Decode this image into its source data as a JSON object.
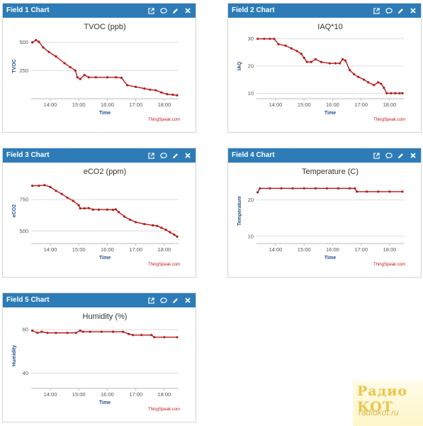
{
  "colors": {
    "header": "#2d7cb8",
    "series": "#b81818",
    "grid": "#dddddd"
  },
  "icons": [
    "external-link-icon",
    "comment-icon",
    "pencil-icon",
    "close-icon"
  ],
  "credit": "ThingSpeak.com",
  "watermark": {
    "logo": "Радио КОТ",
    "url": "radiokot.ru"
  },
  "widgets": [
    {
      "title": "Field 1 Chart",
      "chart_data": {
        "type": "line",
        "title": "TVOC (ppb)",
        "xlabel": "Time",
        "ylabel": "TVOC",
        "x_unit": "hours",
        "xlim": [
          13.33,
          18.5
        ],
        "xticks": [
          14,
          15,
          16,
          17,
          18
        ],
        "xticklabels": [
          "14:00",
          "15:00",
          "16:00",
          "17:00",
          "18:00"
        ],
        "ylim": [
          0,
          580
        ],
        "yticks": [
          250,
          500
        ],
        "yticklabels": [
          "250",
          "500"
        ],
        "x": [
          13.37,
          13.5,
          13.6,
          13.75,
          13.95,
          14.2,
          14.5,
          14.7,
          14.88,
          14.95,
          15.05,
          15.2,
          15.35,
          15.6,
          16.0,
          16.3,
          16.5,
          16.7,
          17.0,
          17.3,
          17.5,
          17.7,
          17.9,
          18.1,
          18.3,
          18.45
        ],
        "y": [
          500,
          520,
          505,
          455,
          415,
          375,
          315,
          280,
          250,
          190,
          175,
          210,
          190,
          190,
          190,
          190,
          185,
          120,
          105,
          90,
          80,
          75,
          55,
          40,
          35,
          30
        ]
      }
    },
    {
      "title": "Field 2 Chart",
      "chart_data": {
        "type": "line",
        "title": "IAQ*10",
        "xlabel": "Time",
        "ylabel": "IAQ",
        "x_unit": "hours",
        "xlim": [
          13.33,
          18.5
        ],
        "xticks": [
          14,
          15,
          16,
          17,
          18
        ],
        "xticklabels": [
          "14:00",
          "15:00",
          "16:00",
          "17:00",
          "18:00"
        ],
        "ylim": [
          8,
          32
        ],
        "yticks": [
          10,
          20,
          30
        ],
        "yticklabels": [
          "10",
          "20",
          "30"
        ],
        "x": [
          13.37,
          13.6,
          13.8,
          13.95,
          14.1,
          14.35,
          14.55,
          14.75,
          14.9,
          15.0,
          15.1,
          15.25,
          15.4,
          15.6,
          15.9,
          16.1,
          16.25,
          16.35,
          16.45,
          16.6,
          16.75,
          16.9,
          17.1,
          17.25,
          17.45,
          17.6,
          17.7,
          17.8,
          17.9,
          18.05,
          18.2,
          18.35,
          18.45
        ],
        "y": [
          30,
          30,
          30,
          30,
          28,
          27.5,
          26.5,
          25.5,
          24.5,
          23,
          21.5,
          21.5,
          22.5,
          21.5,
          21,
          21,
          21,
          22.5,
          22,
          18.5,
          17,
          16,
          15,
          14,
          13,
          14,
          13.5,
          12,
          10,
          10,
          10,
          10,
          10
        ]
      }
    },
    {
      "title": "Field 3 Chart",
      "chart_data": {
        "type": "line",
        "title": "eCO2 (ppm)",
        "xlabel": "Time",
        "ylabel": "eCO2",
        "x_unit": "hours",
        "xlim": [
          13.33,
          18.5
        ],
        "xticks": [
          14,
          15,
          16,
          17,
          18
        ],
        "xticklabels": [
          "14:00",
          "15:00",
          "16:00",
          "17:00",
          "18:00"
        ],
        "ylim": [
          400,
          920
        ],
        "yticks": [
          500,
          750
        ],
        "yticklabels": [
          "500",
          "750"
        ],
        "x": [
          13.37,
          13.6,
          13.8,
          14.0,
          14.2,
          14.4,
          14.6,
          14.8,
          15.0,
          15.05,
          15.2,
          15.35,
          15.5,
          15.7,
          16.0,
          16.2,
          16.3,
          16.4,
          16.6,
          16.8,
          17.0,
          17.3,
          17.6,
          17.75,
          17.9,
          18.05,
          18.2,
          18.35,
          18.45
        ],
        "y": [
          860,
          860,
          865,
          850,
          820,
          795,
          765,
          740,
          705,
          680,
          680,
          682,
          670,
          670,
          670,
          668,
          672,
          650,
          615,
          590,
          570,
          555,
          545,
          540,
          525,
          510,
          490,
          470,
          455
        ]
      }
    },
    {
      "title": "Field 4 Chart",
      "chart_data": {
        "type": "line",
        "title": "Temperature (C)",
        "xlabel": "Time",
        "ylabel": "Temperature",
        "x_unit": "hours",
        "xlim": [
          13.33,
          18.5
        ],
        "xticks": [
          14,
          15,
          16,
          17,
          18
        ],
        "xticklabels": [
          "14:00",
          "15:00",
          "16:00",
          "17:00",
          "18:00"
        ],
        "ylim": [
          8,
          26
        ],
        "yticks": [
          10,
          20
        ],
        "yticklabels": [
          "10",
          "20"
        ],
        "x": [
          13.37,
          13.45,
          13.8,
          14.2,
          14.6,
          15.0,
          15.4,
          15.8,
          16.2,
          16.6,
          16.78,
          16.85,
          17.2,
          17.6,
          18.0,
          18.45
        ],
        "y": [
          22.1,
          23.2,
          23.2,
          23.2,
          23.2,
          23.2,
          23.2,
          23.2,
          23.2,
          23.2,
          23.2,
          22.3,
          22.3,
          22.3,
          22.3,
          22.3
        ]
      }
    },
    {
      "title": "Field 5 Chart",
      "chart_data": {
        "type": "line",
        "title": "Humidity (%)",
        "xlabel": "Time",
        "ylabel": "Humidity",
        "x_unit": "hours",
        "xlim": [
          13.33,
          18.5
        ],
        "xticks": [
          14,
          15,
          16,
          17,
          18
        ],
        "xticklabels": [
          "14:00",
          "15:00",
          "16:00",
          "17:00",
          "18:00"
        ],
        "ylim": [
          33,
          63
        ],
        "yticks": [
          40,
          60
        ],
        "yticklabels": [
          "40",
          "60"
        ],
        "x": [
          13.37,
          13.55,
          13.7,
          13.9,
          14.2,
          14.6,
          14.9,
          15.05,
          15.15,
          15.4,
          15.8,
          16.2,
          16.55,
          16.75,
          16.9,
          17.2,
          17.55,
          17.65,
          18.0,
          18.45
        ],
        "y": [
          59.5,
          58.5,
          59,
          58.5,
          58.5,
          58.5,
          58.5,
          59.5,
          59,
          59,
          59,
          59,
          59,
          58,
          57.5,
          57.5,
          57.5,
          56.5,
          56.5,
          56.5
        ]
      }
    }
  ]
}
